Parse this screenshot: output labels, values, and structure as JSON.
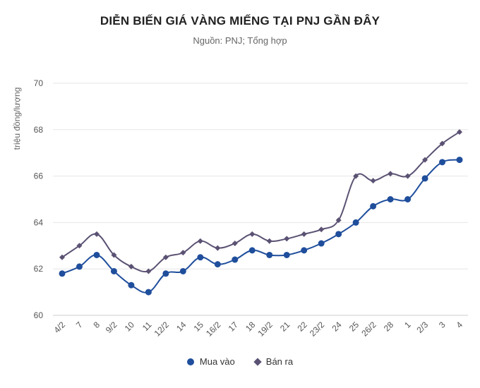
{
  "chart_data": {
    "type": "line",
    "title": "DIỄN BIẾN GIÁ VÀNG MIẾNG TẠI PNJ GẦN ĐÂY",
    "subtitle": "Nguồn: PNJ; Tổng hợp",
    "ylabel": "triệu đồng/lượng",
    "xlabel": "",
    "ylim": [
      60,
      70
    ],
    "yticks": [
      60,
      62,
      64,
      66,
      68,
      70
    ],
    "grid": true,
    "legend_position": "bottom",
    "categories": [
      "4/2",
      "7",
      "8",
      "9/2",
      "10",
      "11",
      "12/2",
      "14",
      "15",
      "16/2",
      "17",
      "18",
      "19/2",
      "21",
      "22",
      "23/2",
      "24",
      "25",
      "26/2",
      "28",
      "1",
      "2/3",
      "3",
      "4"
    ],
    "series": [
      {
        "name": "Mua vào",
        "color": "#1f4e9c",
        "marker": "circle",
        "values": [
          61.8,
          62.1,
          62.6,
          61.9,
          61.3,
          61.0,
          61.8,
          61.9,
          62.5,
          62.2,
          62.4,
          62.8,
          62.6,
          62.6,
          62.8,
          63.1,
          63.5,
          64.0,
          64.7,
          65.0,
          65.0,
          65.9,
          66.6,
          66.7
        ]
      },
      {
        "name": "Bán ra",
        "color": "#5b5273",
        "marker": "diamond",
        "values": [
          62.5,
          63.0,
          63.5,
          62.6,
          62.1,
          61.9,
          62.5,
          62.7,
          63.2,
          62.9,
          63.1,
          63.5,
          63.2,
          63.3,
          63.5,
          63.7,
          64.1,
          66.0,
          65.8,
          66.1,
          66.0,
          66.7,
          67.4,
          67.9
        ]
      }
    ]
  }
}
